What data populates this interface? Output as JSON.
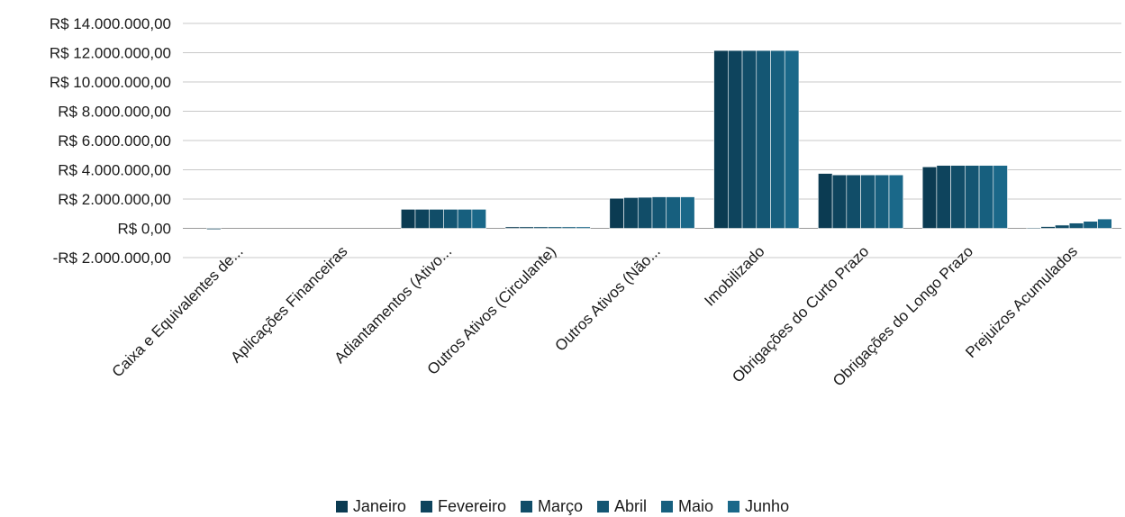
{
  "chart_data": {
    "type": "bar",
    "title": "",
    "xlabel": "",
    "ylabel": "",
    "ylim": [
      -2000000,
      14000000
    ],
    "yticks": [
      -2000000,
      0,
      2000000,
      4000000,
      6000000,
      8000000,
      10000000,
      12000000,
      14000000
    ],
    "ytick_labels": [
      "-R$ 2.000.000,00",
      "R$ 0,00",
      "R$ 2.000.000,00",
      "R$ 4.000.000,00",
      "R$ 6.000.000,00",
      "R$ 8.000.000,00",
      "R$ 10.000.000,00",
      "R$ 12.000.000,00",
      "R$ 14.000.000,00"
    ],
    "grid": true,
    "legend_position": "bottom",
    "categories": [
      "Caixa e Equivalentes de...",
      "Aplicações Financeiras",
      "Adiantamentos (Ativo...",
      "Outros Ativos (Circulante)",
      "Outros Ativos (Não...",
      "Imobilizado",
      "Obrigações do Curto Prazo",
      "Obrigações do Longo Prazo",
      "Prejuizos Acumulados"
    ],
    "series": [
      {
        "name": "Janeiro",
        "color": "#0b3b52",
        "values": [
          0,
          0,
          1300000,
          100000,
          2050000,
          12150000,
          3750000,
          4200000,
          50000
        ]
      },
      {
        "name": "Fevereiro",
        "color": "#0e445d",
        "values": [
          -80000,
          0,
          1300000,
          100000,
          2100000,
          12150000,
          3650000,
          4300000,
          120000
        ]
      },
      {
        "name": "Março",
        "color": "#114d68",
        "values": [
          0,
          0,
          1300000,
          100000,
          2120000,
          12150000,
          3650000,
          4300000,
          220000
        ]
      },
      {
        "name": "Abril",
        "color": "#145673",
        "values": [
          0,
          0,
          1300000,
          100000,
          2150000,
          12150000,
          3650000,
          4300000,
          360000
        ]
      },
      {
        "name": "Maio",
        "color": "#175f7e",
        "values": [
          0,
          0,
          1300000,
          100000,
          2150000,
          12150000,
          3650000,
          4300000,
          480000
        ]
      },
      {
        "name": "Junho",
        "color": "#1a6889",
        "values": [
          0,
          0,
          1300000,
          100000,
          2150000,
          12150000,
          3650000,
          4300000,
          640000
        ]
      }
    ]
  }
}
